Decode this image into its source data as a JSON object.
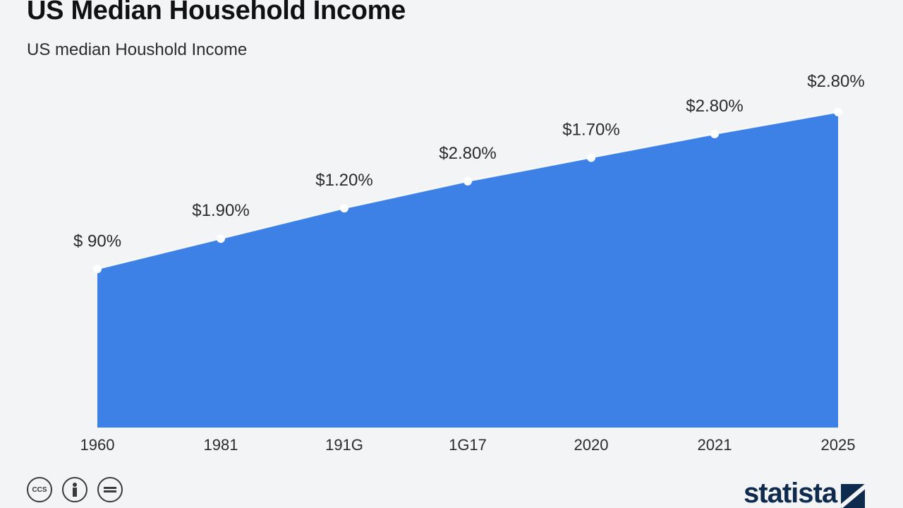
{
  "header": {
    "title": "US Median Household Income",
    "subtitle": "US median Houshold Income"
  },
  "footer": {
    "icons": [
      "cc-icon",
      "person-icon",
      "equals-icon"
    ],
    "icon_labels": [
      "CCS",
      "",
      ""
    ],
    "brand": "statista"
  },
  "colors": {
    "area_fill": "#3d80e6",
    "background": "#f3f4f6",
    "label_text": "#2b2b2b",
    "marker": "#ffffff"
  },
  "chart_data": {
    "type": "area",
    "title": "US Median Household Income",
    "subtitle": "US median Houshold Income",
    "xlabel": "",
    "ylabel": "",
    "grid": false,
    "legend": "none",
    "categories": [
      "1960",
      "1981",
      "191G",
      "1G17",
      "2020",
      "2021",
      "2025"
    ],
    "values": [
      47,
      56,
      65,
      73,
      80,
      87,
      93.5
    ],
    "data_labels": [
      "$ 90%",
      "$1.90%",
      "$1.20%",
      "$2.80%",
      "$1.70%",
      "$2.80%",
      "$2.80%"
    ],
    "ylim": [
      0,
      110
    ]
  }
}
